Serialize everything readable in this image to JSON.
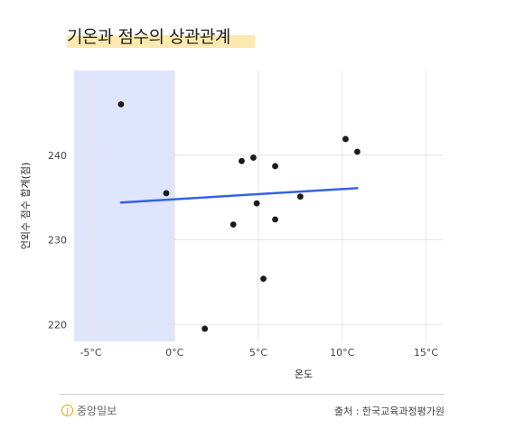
{
  "title": "기온과 점수의 상관관계",
  "source": "출처 : 한국교육과정평가원",
  "logo_text": "중앙일보",
  "logo_mark": "J",
  "chart_data": {
    "type": "scatter",
    "title": "기온과 점수의 상관관계",
    "xlabel": "온도",
    "ylabel": "언외수 점수 합계(점)",
    "xlim": [
      -6,
      16
    ],
    "ylim": [
      218,
      250
    ],
    "x_ticks": [
      -5,
      0,
      5,
      10,
      15
    ],
    "x_tick_labels": [
      "-5°C",
      "0°C",
      "5°C",
      "10°C",
      "15°C"
    ],
    "y_ticks": [
      220,
      230,
      240
    ],
    "y_tick_labels": [
      "220",
      "230",
      "240"
    ],
    "grid": true,
    "highlight_band": {
      "x_from": -6,
      "x_to": 0,
      "color": "#dfe5fd"
    },
    "points": [
      {
        "x": -3.2,
        "y": 246
      },
      {
        "x": -0.5,
        "y": 235.5
      },
      {
        "x": 1.8,
        "y": 219.5
      },
      {
        "x": 3.5,
        "y": 231.8
      },
      {
        "x": 4.0,
        "y": 239.3
      },
      {
        "x": 4.7,
        "y": 239.7
      },
      {
        "x": 4.9,
        "y": 234.3
      },
      {
        "x": 5.3,
        "y": 225.4
      },
      {
        "x": 6.0,
        "y": 238.7
      },
      {
        "x": 6.0,
        "y": 232.4
      },
      {
        "x": 7.5,
        "y": 235.1
      },
      {
        "x": 10.2,
        "y": 241.9
      },
      {
        "x": 10.9,
        "y": 240.4
      }
    ],
    "trendline": {
      "x": [
        -3.2,
        10.9
      ],
      "y": [
        234.4,
        236.1
      ],
      "color": "#3563e0"
    },
    "point_color": "#1a1a1a"
  }
}
